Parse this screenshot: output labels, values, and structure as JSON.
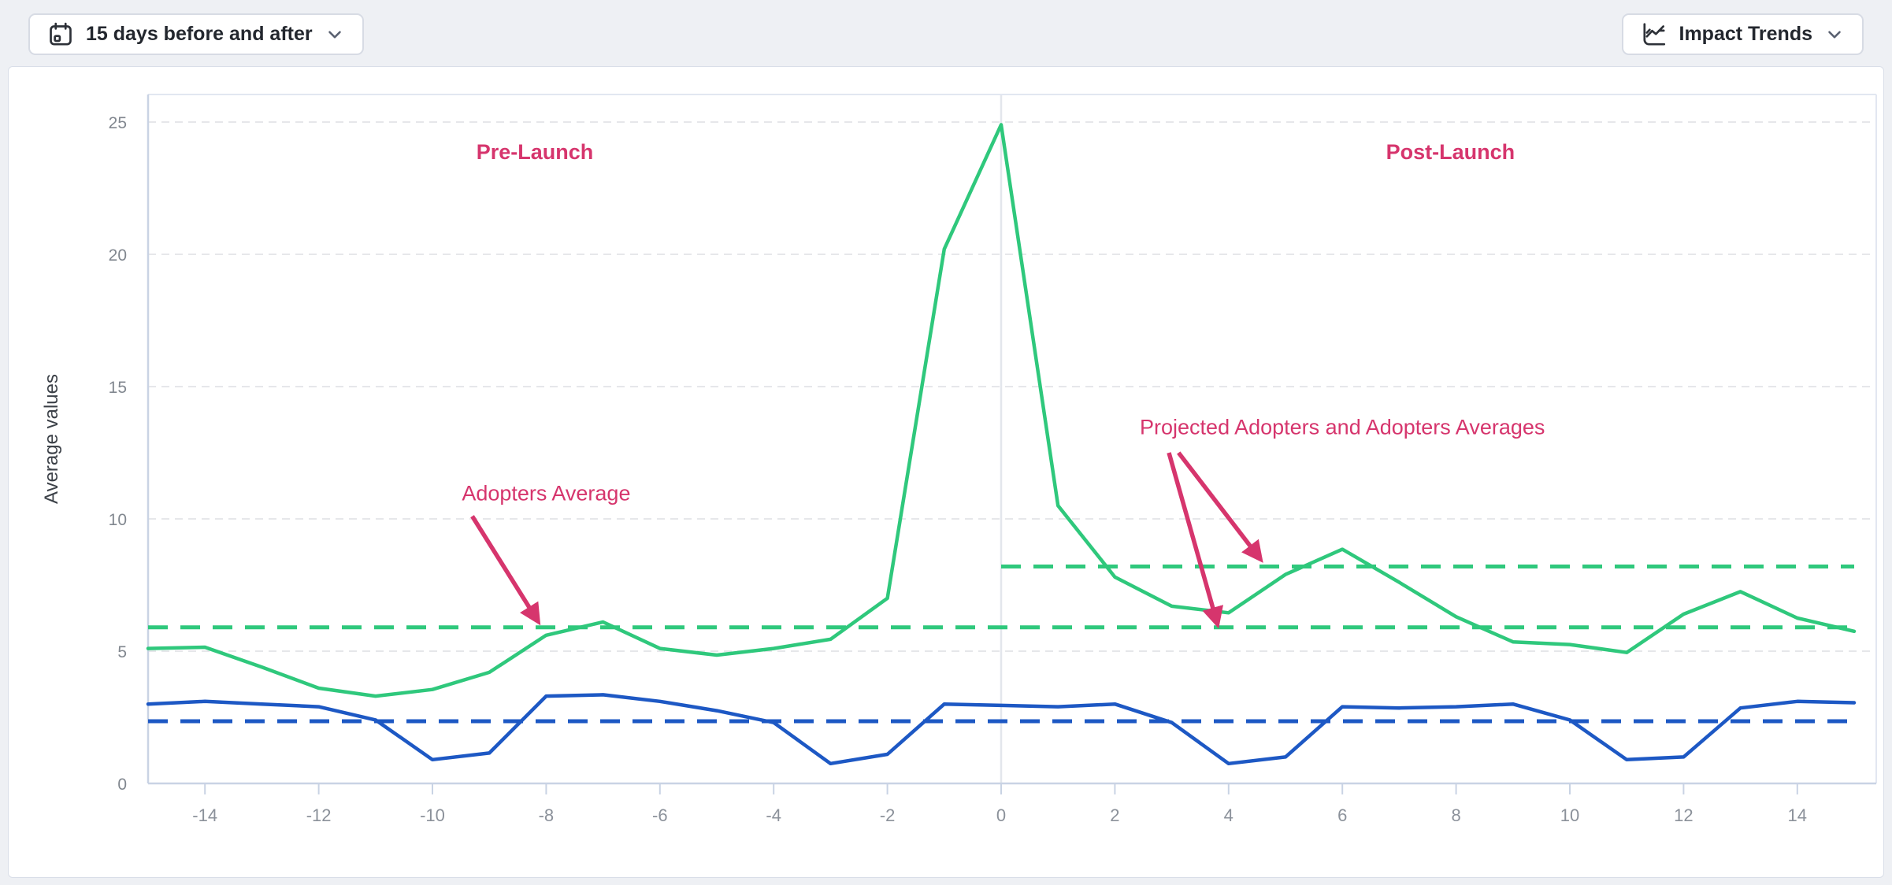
{
  "toolbar": {
    "date_range": {
      "label": "15 days before and after",
      "icon": "calendar-icon"
    },
    "trend_selector": {
      "label": "Impact Trends",
      "icon": "trend-chart-icon"
    }
  },
  "colors": {
    "adopters_green": "#2fc87c",
    "projected_blue": "#1d58c4",
    "annotation_pink": "#d6356d"
  },
  "chart_data": {
    "type": "line",
    "title": "",
    "xlabel": "",
    "ylabel": "Average values",
    "xlim": [
      -15,
      15
    ],
    "ylim": [
      0,
      26
    ],
    "grid": true,
    "legend": "none",
    "x_ticks": [
      "-14",
      "-12",
      "-10",
      "-8",
      "-6",
      "-4",
      "-2",
      "0",
      "2",
      "4",
      "6",
      "8",
      "10",
      "12",
      "14"
    ],
    "x_tick_values": [
      -14,
      -12,
      -10,
      -8,
      -6,
      -4,
      -2,
      0,
      2,
      4,
      6,
      8,
      10,
      12,
      14
    ],
    "y_ticks": [
      "0",
      "5",
      "10",
      "15",
      "20",
      "25"
    ],
    "y_tick_values": [
      0,
      5,
      10,
      15,
      20,
      25
    ],
    "x": [
      -15,
      -14,
      -13,
      -12,
      -11,
      -10,
      -9,
      -8,
      -7,
      -6,
      -5,
      -4,
      -3,
      -2,
      -1,
      0,
      1,
      2,
      3,
      4,
      5,
      6,
      7,
      8,
      9,
      10,
      11,
      12,
      13,
      14,
      15
    ],
    "series": [
      {
        "name": "adopters",
        "color": "#2fc87c",
        "line_style": "solid",
        "values": [
          5.1,
          5.15,
          4.4,
          3.6,
          3.3,
          3.55,
          4.2,
          5.6,
          6.1,
          5.1,
          4.85,
          5.1,
          5.45,
          7.0,
          20.2,
          24.9,
          10.5,
          7.8,
          6.7,
          6.45,
          7.9,
          8.85,
          7.6,
          6.3,
          5.35,
          5.25,
          4.95,
          6.4,
          7.25,
          6.25,
          5.75
        ]
      },
      {
        "name": "projected-adopters",
        "color": "#1d58c4",
        "line_style": "solid",
        "values": [
          3.0,
          3.1,
          3.0,
          2.9,
          2.4,
          0.9,
          1.15,
          3.3,
          3.35,
          3.1,
          2.75,
          2.3,
          0.75,
          1.1,
          3.0,
          2.95,
          2.9,
          3.0,
          2.3,
          0.75,
          1.0,
          2.9,
          2.85,
          2.9,
          3.0,
          2.4,
          0.9,
          1.0,
          2.85,
          3.1,
          3.05
        ]
      }
    ],
    "reference_lines": [
      {
        "name": "adopters-average",
        "value": 5.9,
        "x_start": -15,
        "x_end": 15,
        "color": "#2fc87c",
        "line_style": "dashed"
      },
      {
        "name": "post-launch-adopters-average",
        "value": 8.2,
        "x_start": 0,
        "x_end": 15,
        "color": "#2fc87c",
        "line_style": "dashed"
      },
      {
        "name": "projected-adopters-average",
        "value": 2.35,
        "x_start": -15,
        "x_end": 15,
        "color": "#1d58c4",
        "line_style": "dashed"
      }
    ],
    "vertical_marker_x": 0,
    "annotations": [
      {
        "id": "pre-launch",
        "text": "Pre-Launch",
        "x": -8.2,
        "y": 23.6,
        "bold": true,
        "arrows": []
      },
      {
        "id": "post-launch",
        "text": "Post-Launch",
        "x": 7.9,
        "y": 23.6,
        "bold": true,
        "arrows": []
      },
      {
        "id": "adopters-average-label",
        "text": "Adopters Average",
        "x": -8.0,
        "y": 10.7,
        "bold": false,
        "arrows": [
          {
            "from_x": -9.3,
            "from_y": 10.1,
            "to_x": -8.15,
            "to_y": 6.15
          }
        ]
      },
      {
        "id": "projected-adopters-label",
        "text": "Projected Adopters and Adopters Averages",
        "x": 6.0,
        "y": 13.2,
        "bold": false,
        "arrows": [
          {
            "from_x": 2.95,
            "from_y": 12.5,
            "to_x": 3.8,
            "to_y": 6.05
          },
          {
            "from_x": 3.12,
            "from_y": 12.5,
            "to_x": 4.55,
            "to_y": 8.5
          }
        ]
      }
    ]
  }
}
